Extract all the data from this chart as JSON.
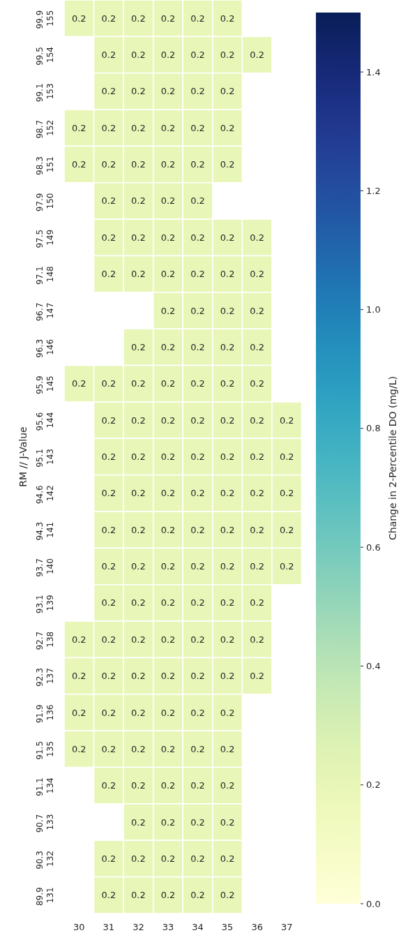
{
  "chart_data": {
    "type": "heatmap",
    "ylabel": "RM // J-Value",
    "clabel": "Change in 2-Percentile DO (mg/L)",
    "categories": [
      "30",
      "31",
      "32",
      "33",
      "34",
      "35",
      "36",
      "37"
    ],
    "y_categories": [
      "99.9\n155",
      "99.5\n154",
      "99.1\n153",
      "98.7\n152",
      "98.3\n151",
      "97.9\n150",
      "97.5\n149",
      "97.1\n148",
      "96.7\n147",
      "96.3\n146",
      "95.9\n145",
      "95.6\n144",
      "95.1\n143",
      "94.6\n142",
      "94.3\n141",
      "93.7\n140",
      "93.1\n139",
      "92.7\n138",
      "92.3\n137",
      "91.9\n136",
      "91.5\n135",
      "91.1\n134",
      "90.7\n133",
      "90.3\n132",
      "89.9\n131"
    ],
    "cells": [
      [
        0.2,
        0.2,
        0.2,
        0.2,
        0.2,
        0.2,
        null,
        null
      ],
      [
        null,
        0.2,
        0.2,
        0.2,
        0.2,
        0.2,
        0.2,
        null
      ],
      [
        null,
        0.2,
        0.2,
        0.2,
        0.2,
        0.2,
        null,
        null
      ],
      [
        0.2,
        0.2,
        0.2,
        0.2,
        0.2,
        0.2,
        null,
        null
      ],
      [
        0.2,
        0.2,
        0.2,
        0.2,
        0.2,
        0.2,
        null,
        null
      ],
      [
        null,
        0.2,
        0.2,
        0.2,
        0.2,
        null,
        null,
        null
      ],
      [
        null,
        0.2,
        0.2,
        0.2,
        0.2,
        0.2,
        0.2,
        null
      ],
      [
        null,
        0.2,
        0.2,
        0.2,
        0.2,
        0.2,
        0.2,
        null
      ],
      [
        null,
        null,
        null,
        0.2,
        0.2,
        0.2,
        0.2,
        null
      ],
      [
        null,
        null,
        0.2,
        0.2,
        0.2,
        0.2,
        0.2,
        null
      ],
      [
        0.2,
        0.2,
        0.2,
        0.2,
        0.2,
        0.2,
        0.2,
        null
      ],
      [
        null,
        0.2,
        0.2,
        0.2,
        0.2,
        0.2,
        0.2,
        0.2
      ],
      [
        null,
        0.2,
        0.2,
        0.2,
        0.2,
        0.2,
        0.2,
        0.2
      ],
      [
        null,
        0.2,
        0.2,
        0.2,
        0.2,
        0.2,
        0.2,
        0.2
      ],
      [
        null,
        0.2,
        0.2,
        0.2,
        0.2,
        0.2,
        0.2,
        0.2
      ],
      [
        null,
        0.2,
        0.2,
        0.2,
        0.2,
        0.2,
        0.2,
        0.2
      ],
      [
        null,
        0.2,
        0.2,
        0.2,
        0.2,
        0.2,
        0.2,
        null
      ],
      [
        0.2,
        0.2,
        0.2,
        0.2,
        0.2,
        0.2,
        0.2,
        null
      ],
      [
        0.2,
        0.2,
        0.2,
        0.2,
        0.2,
        0.2,
        0.2,
        null
      ],
      [
        0.2,
        0.2,
        0.2,
        0.2,
        0.2,
        0.2,
        null,
        null
      ],
      [
        0.2,
        0.2,
        0.2,
        0.2,
        0.2,
        0.2,
        null,
        null
      ],
      [
        null,
        0.2,
        0.2,
        0.2,
        0.2,
        0.2,
        null,
        null
      ],
      [
        null,
        null,
        0.2,
        0.2,
        0.2,
        0.2,
        null,
        null
      ],
      [
        null,
        0.2,
        0.2,
        0.2,
        0.2,
        0.2,
        null,
        null
      ],
      [
        null,
        0.2,
        0.2,
        0.2,
        0.2,
        0.2,
        null,
        null
      ]
    ],
    "clim": [
      0,
      1.5
    ],
    "cticks": [
      {
        "value": 0,
        "label": "0.0"
      },
      0.2,
      0.4,
      0.6,
      0.8,
      {
        "value": 1,
        "label": "1.0"
      },
      1.2,
      1.4
    ],
    "data_labels": true
  }
}
